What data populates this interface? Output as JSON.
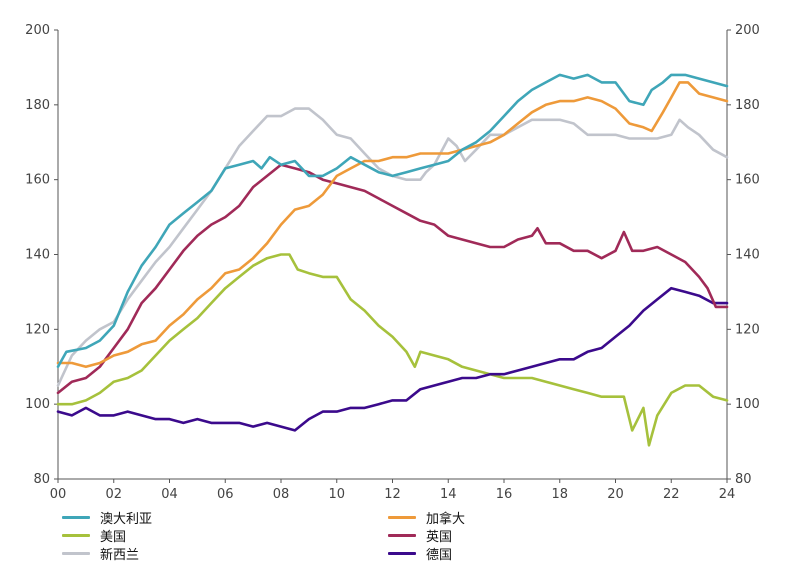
{
  "chart_data": {
    "type": "line",
    "xlim": [
      2000,
      2024
    ],
    "ylim": [
      80,
      200
    ],
    "y_ticks": [
      80,
      100,
      120,
      140,
      160,
      180,
      200
    ],
    "x_ticks": [
      2000,
      2002,
      2004,
      2006,
      2008,
      2010,
      2012,
      2014,
      2016,
      2018,
      2020,
      2022,
      2024
    ],
    "x_tick_labels": [
      "00",
      "02",
      "04",
      "06",
      "08",
      "10",
      "12",
      "14",
      "16",
      "18",
      "20",
      "22",
      "24"
    ],
    "y_tick_labels": [
      "80",
      "100",
      "120",
      "140",
      "160",
      "180",
      "200"
    ],
    "dual_y_axis": true,
    "grid": false,
    "legend_position": "bottom",
    "series": [
      {
        "name": "澳大利亚",
        "color": "#3fa6b8",
        "x": [
          2000,
          2000.3,
          2001,
          2001.5,
          2002,
          2002.5,
          2003,
          2003.5,
          2004,
          2004.5,
          2005,
          2005.5,
          2006,
          2006.5,
          2007,
          2007.3,
          2007.6,
          2008,
          2008.5,
          2009,
          2009.5,
          2010,
          2010.5,
          2011,
          2011.5,
          2012,
          2012.5,
          2013,
          2013.5,
          2014,
          2014.5,
          2015,
          2015.5,
          2016,
          2016.5,
          2017,
          2017.5,
          2018,
          2018.5,
          2019,
          2019.5,
          2020,
          2020.5,
          2021,
          2021.3,
          2021.7,
          2022,
          2022.5,
          2023,
          2023.5,
          2024
        ],
        "y": [
          110,
          114,
          115,
          117,
          121,
          130,
          137,
          142,
          148,
          151,
          154,
          157,
          163,
          164,
          165,
          163,
          166,
          164,
          165,
          161,
          161,
          163,
          166,
          164,
          162,
          161,
          162,
          163,
          164,
          165,
          168,
          170,
          173,
          177,
          181,
          184,
          186,
          188,
          187,
          188,
          186,
          186,
          181,
          180,
          184,
          186,
          188,
          188,
          187,
          186,
          185
        ]
      },
      {
        "name": "加拿大",
        "color": "#ee9a3a",
        "x": [
          2000,
          2000.5,
          2001,
          2001.5,
          2002,
          2002.5,
          2003,
          2003.5,
          2004,
          2004.5,
          2005,
          2005.5,
          2006,
          2006.5,
          2007,
          2007.5,
          2008,
          2008.5,
          2009,
          2009.5,
          2010,
          2010.5,
          2011,
          2011.5,
          2012,
          2012.5,
          2013,
          2013.5,
          2014,
          2014.5,
          2015,
          2015.5,
          2016,
          2016.5,
          2017,
          2017.5,
          2018,
          2018.5,
          2019,
          2019.5,
          2020,
          2020.5,
          2021,
          2021.3,
          2021.7,
          2022,
          2022.3,
          2022.6,
          2023,
          2023.5,
          2024
        ],
        "y": [
          111,
          111,
          110,
          111,
          113,
          114,
          116,
          117,
          121,
          124,
          128,
          131,
          135,
          136,
          139,
          143,
          148,
          152,
          153,
          156,
          161,
          163,
          165,
          165,
          166,
          166,
          167,
          167,
          167,
          168,
          169,
          170,
          172,
          175,
          178,
          180,
          181,
          181,
          182,
          181,
          179,
          175,
          174,
          173,
          178,
          182,
          186,
          186,
          183,
          182,
          181
        ]
      },
      {
        "name": "美国",
        "color": "#a6c13c",
        "x": [
          2000,
          2000.5,
          2001,
          2001.5,
          2002,
          2002.5,
          2003,
          2003.5,
          2004,
          2004.5,
          2005,
          2005.5,
          2006,
          2006.5,
          2007,
          2007.5,
          2008,
          2008.3,
          2008.6,
          2009,
          2009.5,
          2010,
          2010.5,
          2011,
          2011.5,
          2012,
          2012.5,
          2012.8,
          2013,
          2013.5,
          2014,
          2014.5,
          2015,
          2015.5,
          2016,
          2016.5,
          2017,
          2017.5,
          2018,
          2018.5,
          2019,
          2019.5,
          2020,
          2020.3,
          2020.6,
          2021,
          2021.2,
          2021.5,
          2022,
          2022.5,
          2023,
          2023.5,
          2024
        ],
        "y": [
          100,
          100,
          101,
          103,
          106,
          107,
          109,
          113,
          117,
          120,
          123,
          127,
          131,
          134,
          137,
          139,
          140,
          140,
          136,
          135,
          134,
          134,
          128,
          125,
          121,
          118,
          114,
          110,
          114,
          113,
          112,
          110,
          109,
          108,
          107,
          107,
          107,
          106,
          105,
          104,
          103,
          102,
          102,
          102,
          93,
          99,
          89,
          97,
          103,
          105,
          105,
          102,
          101
        ]
      },
      {
        "name": "英国",
        "color": "#a02a58",
        "x": [
          2000,
          2000.5,
          2001,
          2001.5,
          2002,
          2002.5,
          2003,
          2003.5,
          2004,
          2004.5,
          2005,
          2005.5,
          2006,
          2006.5,
          2007,
          2007.5,
          2008,
          2008.5,
          2009,
          2009.5,
          2010,
          2010.5,
          2011,
          2011.5,
          2012,
          2012.5,
          2013,
          2013.5,
          2014,
          2014.5,
          2015,
          2015.5,
          2016,
          2016.5,
          2017,
          2017.2,
          2017.5,
          2018,
          2018.5,
          2019,
          2019.5,
          2020,
          2020.3,
          2020.6,
          2021,
          2021.5,
          2022,
          2022.5,
          2023,
          2023.3,
          2023.6,
          2024
        ],
        "y": [
          103,
          106,
          107,
          110,
          115,
          120,
          127,
          131,
          136,
          141,
          145,
          148,
          150,
          153,
          158,
          161,
          164,
          163,
          162,
          160,
          159,
          158,
          157,
          155,
          153,
          151,
          149,
          148,
          145,
          144,
          143,
          142,
          142,
          144,
          145,
          147,
          143,
          143,
          141,
          141,
          139,
          141,
          146,
          141,
          141,
          142,
          140,
          138,
          134,
          131,
          126,
          126
        ]
      },
      {
        "name": "新西兰",
        "color": "#c1c4cc",
        "x": [
          2000,
          2000.5,
          2001,
          2001.5,
          2002,
          2002.5,
          2003,
          2003.5,
          2004,
          2004.5,
          2005,
          2005.5,
          2006,
          2006.5,
          2007,
          2007.5,
          2008,
          2008.5,
          2009,
          2009.5,
          2010,
          2010.5,
          2011,
          2011.5,
          2012,
          2012.5,
          2013,
          2013.2,
          2013.5,
          2014,
          2014.3,
          2014.6,
          2015,
          2015.5,
          2016,
          2016.5,
          2017,
          2017.5,
          2018,
          2018.5,
          2019,
          2019.5,
          2020,
          2020.5,
          2021,
          2021.5,
          2022,
          2022.3,
          2022.6,
          2023,
          2023.5,
          2024
        ],
        "y": [
          105,
          113,
          117,
          120,
          122,
          128,
          133,
          138,
          142,
          147,
          152,
          157,
          163,
          169,
          173,
          177,
          177,
          179,
          179,
          176,
          172,
          171,
          167,
          163,
          161,
          160,
          160,
          162,
          164,
          171,
          169,
          165,
          168,
          172,
          172,
          174,
          176,
          176,
          176,
          175,
          172,
          172,
          172,
          171,
          171,
          171,
          172,
          176,
          174,
          172,
          168,
          166
        ]
      },
      {
        "name": "德国",
        "color": "#3b0a8c",
        "x": [
          2000,
          2000.5,
          2001,
          2001.5,
          2002,
          2002.5,
          2003,
          2003.5,
          2004,
          2004.5,
          2005,
          2005.5,
          2006,
          2006.5,
          2007,
          2007.5,
          2008,
          2008.5,
          2009,
          2009.5,
          2010,
          2010.5,
          2011,
          2011.5,
          2012,
          2012.5,
          2013,
          2013.5,
          2014,
          2014.5,
          2015,
          2015.5,
          2016,
          2016.5,
          2017,
          2017.5,
          2018,
          2018.5,
          2019,
          2019.5,
          2020,
          2020.5,
          2021,
          2021.5,
          2022,
          2022.5,
          2023,
          2023.5,
          2024
        ],
        "y": [
          98,
          97,
          99,
          97,
          97,
          98,
          97,
          96,
          96,
          95,
          96,
          95,
          95,
          95,
          94,
          95,
          94,
          93,
          96,
          98,
          98,
          99,
          99,
          100,
          101,
          101,
          104,
          105,
          106,
          107,
          107,
          108,
          108,
          109,
          110,
          111,
          112,
          112,
          114,
          115,
          118,
          121,
          125,
          128,
          131,
          130,
          129,
          127,
          127
        ]
      }
    ]
  }
}
